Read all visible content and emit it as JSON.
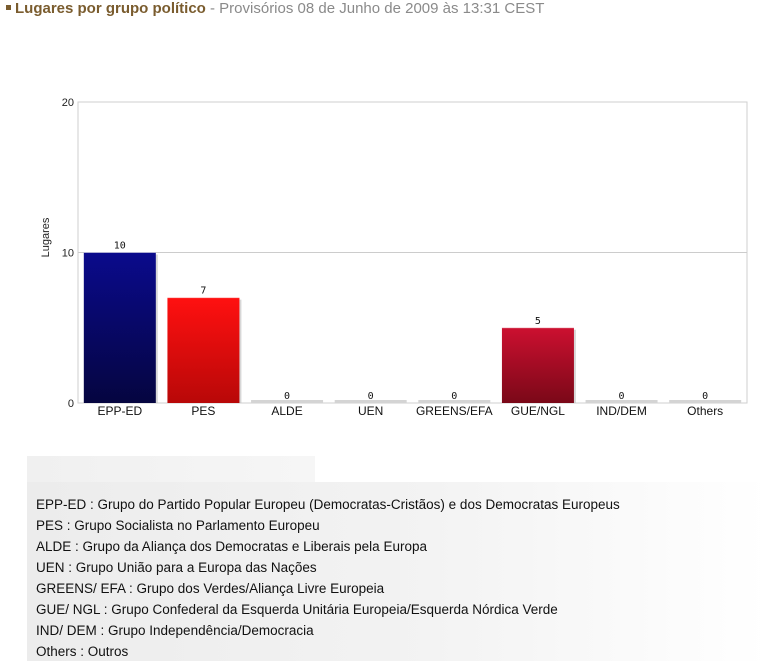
{
  "header": {
    "title": "Lugares por grupo político",
    "subtitle": " - Provisórios 08 de Junho de 2009 às 13:31 CEST"
  },
  "chart_data": {
    "type": "bar",
    "categories": [
      "EPP-ED",
      "PES",
      "ALDE",
      "UEN",
      "GREENS/EFA",
      "GUE/NGL",
      "IND/DEM",
      "Others"
    ],
    "values": [
      10,
      7,
      0,
      0,
      0,
      5,
      0,
      0
    ],
    "data_labels": [
      "10",
      "7",
      "0",
      "0",
      "0",
      "5",
      "0",
      "0"
    ],
    "bar_colors": [
      "#0a0a7a",
      "#e00a0a",
      "#c8c8c8",
      "#c8c8c8",
      "#c8c8c8",
      "#b0102a",
      "#c8c8c8",
      "#c8c8c8"
    ],
    "ylabel": "Lugares",
    "xlabel": "",
    "ylim": [
      0,
      20
    ],
    "yticks": [
      "0",
      "10",
      "20"
    ],
    "grid": true
  },
  "legend": {
    "items": [
      "EPP-ED : Grupo do Partido Popular Europeu (Democratas-Cristãos) e dos Democratas Europeus",
      "PES : Grupo Socialista no Parlamento Europeu",
      "ALDE : Grupo da Aliança dos Democratas e Liberais pela Europa",
      "UEN : Grupo União para a Europa das Nações",
      "GREENS/ EFA : Grupo dos Verdes/Aliança Livre Europeia",
      "GUE/ NGL : Grupo Confederal da Esquerda Unitária Europeia/Esquerda Nórdica Verde",
      "IND/ DEM : Grupo Independência/Democracia",
      "Others : Outros"
    ]
  }
}
